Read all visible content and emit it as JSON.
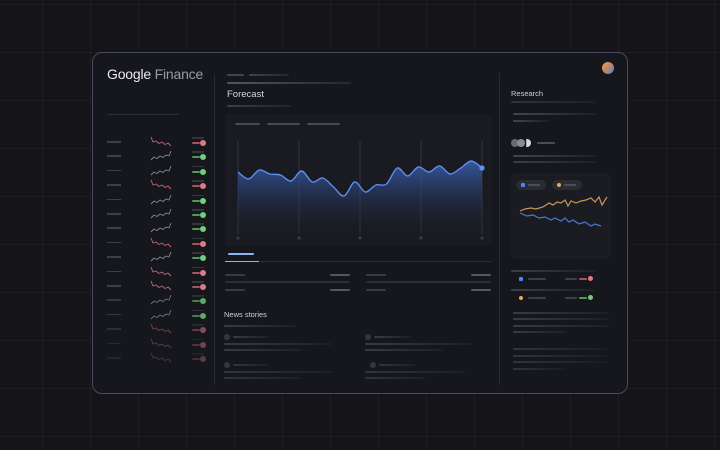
{
  "app": {
    "brand_primary": "Google",
    "brand_secondary": "Finance"
  },
  "colors": {
    "background": "#141419",
    "window_bg": "#16171c",
    "window_border": "#4a4a5e",
    "accent_blue": "#5b8def",
    "accent_orange": "#e3a45a",
    "positive": "#6fcf7c",
    "negative": "#e07a86"
  },
  "sidebar": {
    "watchlist": [
      {
        "trend": "down"
      },
      {
        "trend": "up"
      },
      {
        "trend": "up"
      },
      {
        "trend": "down"
      },
      {
        "trend": "up"
      },
      {
        "trend": "up"
      },
      {
        "trend": "up"
      },
      {
        "trend": "down"
      },
      {
        "trend": "up"
      },
      {
        "trend": "down"
      },
      {
        "trend": "down"
      },
      {
        "trend": "up"
      },
      {
        "trend": "up"
      },
      {
        "trend": "down"
      },
      {
        "trend": "down"
      },
      {
        "trend": "down"
      }
    ]
  },
  "main": {
    "section_title": "Forecast",
    "chart_tabs": 3,
    "news_title": "News stories"
  },
  "research": {
    "title": "Research",
    "legend": [
      {
        "icon": "blue-square",
        "color": "#4f86f7"
      },
      {
        "icon": "orange-dot",
        "color": "#e6a85a"
      }
    ],
    "holdings": [
      {
        "icon": "blue-square",
        "change": "negative"
      },
      {
        "icon": "orange-dot",
        "change": "positive"
      }
    ]
  },
  "chart_data": {
    "type": "area",
    "title": "Forecast",
    "x_ticks": 5,
    "values": [
      62,
      55,
      64,
      60,
      59,
      53,
      63,
      52,
      56,
      47,
      38,
      52,
      42,
      49,
      50,
      66,
      58,
      67,
      62,
      68,
      60,
      66,
      73,
      66
    ],
    "ylim": [
      0,
      100
    ],
    "grid": "vertical",
    "last_point_marker": true
  }
}
